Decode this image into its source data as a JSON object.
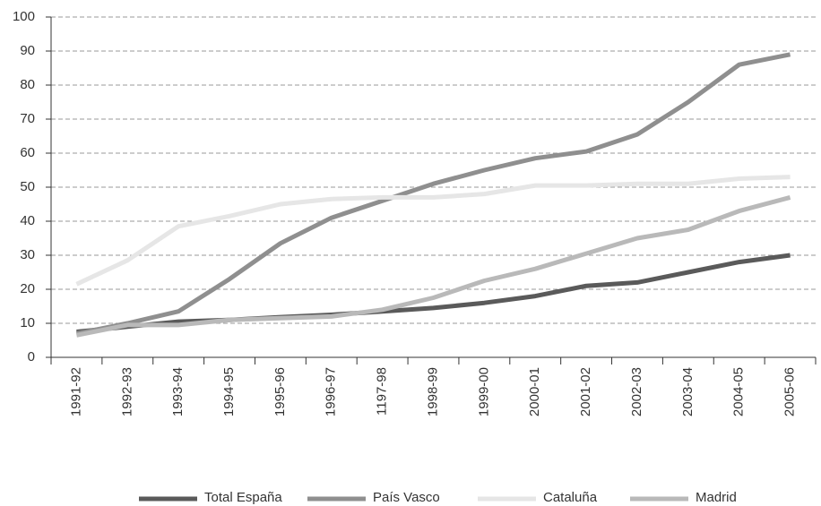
{
  "chart_data": {
    "type": "line",
    "categories": [
      "1991-92",
      "1992-93",
      "1993-94",
      "1994-95",
      "1995-96",
      "1996-97",
      "1197-98",
      "1998-99",
      "1999-00",
      "2000-01",
      "2001-02",
      "2002-03",
      "2003-04",
      "2004-05",
      "2005-06"
    ],
    "series": [
      {
        "name": "Total España",
        "color": "#5a5a5a",
        "values": [
          7.5,
          9,
          10.5,
          11,
          11.8,
          12.5,
          13.5,
          14.5,
          16,
          18,
          21,
          22,
          25,
          28,
          30
        ]
      },
      {
        "name": "País Vasco",
        "color": "#8f8f8f",
        "values": [
          7,
          10,
          13.5,
          23,
          33.5,
          41,
          46,
          51,
          55,
          58.5,
          60.5,
          65.5,
          75,
          86,
          89
        ]
      },
      {
        "name": "Cataluña",
        "color": "#e6e6e6",
        "values": [
          21.5,
          28.5,
          38.5,
          41.5,
          45,
          46.5,
          47,
          47,
          48,
          50.5,
          50.5,
          51,
          51,
          52.5,
          53
        ]
      },
      {
        "name": "Madrid",
        "color": "#b9b9b9",
        "values": [
          6.5,
          9.5,
          9.5,
          11,
          11.5,
          12,
          14,
          17.5,
          22.5,
          26,
          30.5,
          35,
          37.5,
          43,
          47
        ]
      }
    ],
    "ylim": [
      0,
      100
    ],
    "yticks": [
      0,
      10,
      20,
      30,
      40,
      50,
      60,
      70,
      80,
      90,
      100
    ],
    "grid": true,
    "legend": "bottom"
  }
}
